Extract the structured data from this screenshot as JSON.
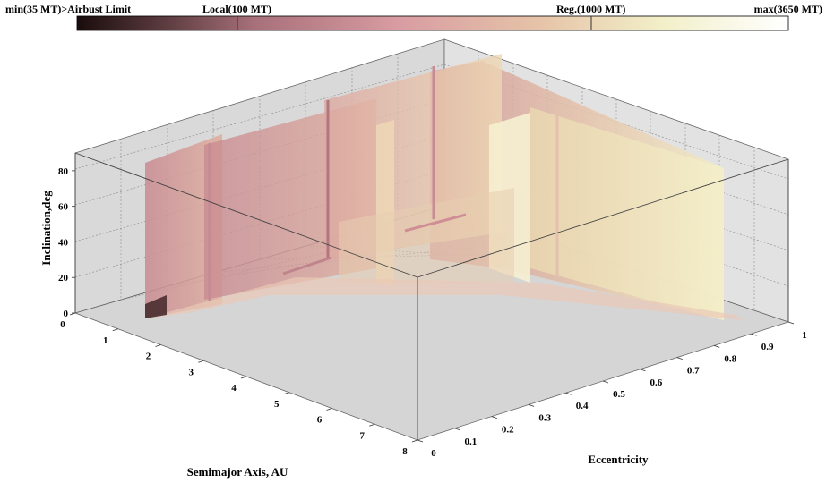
{
  "chart_data": {
    "type": "3d-surface-slices",
    "colorbar": {
      "labels": [
        {
          "text": "min(35 MT)>Airbust Limit",
          "value": 35
        },
        {
          "text": "Local(100 MT)",
          "value": 100
        },
        {
          "text": "Reg.(1000 MT)",
          "value": 1000
        },
        {
          "text": "max(3650 MT)",
          "value": 3650
        }
      ],
      "range": [
        35,
        3650
      ],
      "colors": [
        "#1a0c0c",
        "#5a3a3e",
        "#a8707a",
        "#d79aa0",
        "#e6c3a8",
        "#f2efc8",
        "#ffffff"
      ]
    },
    "axes": {
      "x": {
        "label": "Semimajor Axis, AU",
        "range": [
          0,
          8
        ],
        "ticks": [
          "0",
          "1",
          "2",
          "3",
          "4",
          "5",
          "6",
          "7",
          "8"
        ]
      },
      "y": {
        "label": "Eccentricity",
        "range": [
          0,
          1
        ],
        "ticks": [
          "0",
          "0.1",
          "0.2",
          "0.3",
          "0.4",
          "0.5",
          "0.6",
          "0.7",
          "0.8",
          "0.9",
          "1"
        ]
      },
      "z": {
        "label": "Inclination,deg",
        "range": [
          0,
          90
        ],
        "ticks": [
          "0",
          "20",
          "40",
          "60",
          "80"
        ]
      }
    },
    "slices": {
      "semimajor_axis_slices": [
        1,
        2,
        4,
        6
      ],
      "eccentricity_slices": [
        0.2,
        0.35,
        0.6
      ]
    }
  }
}
